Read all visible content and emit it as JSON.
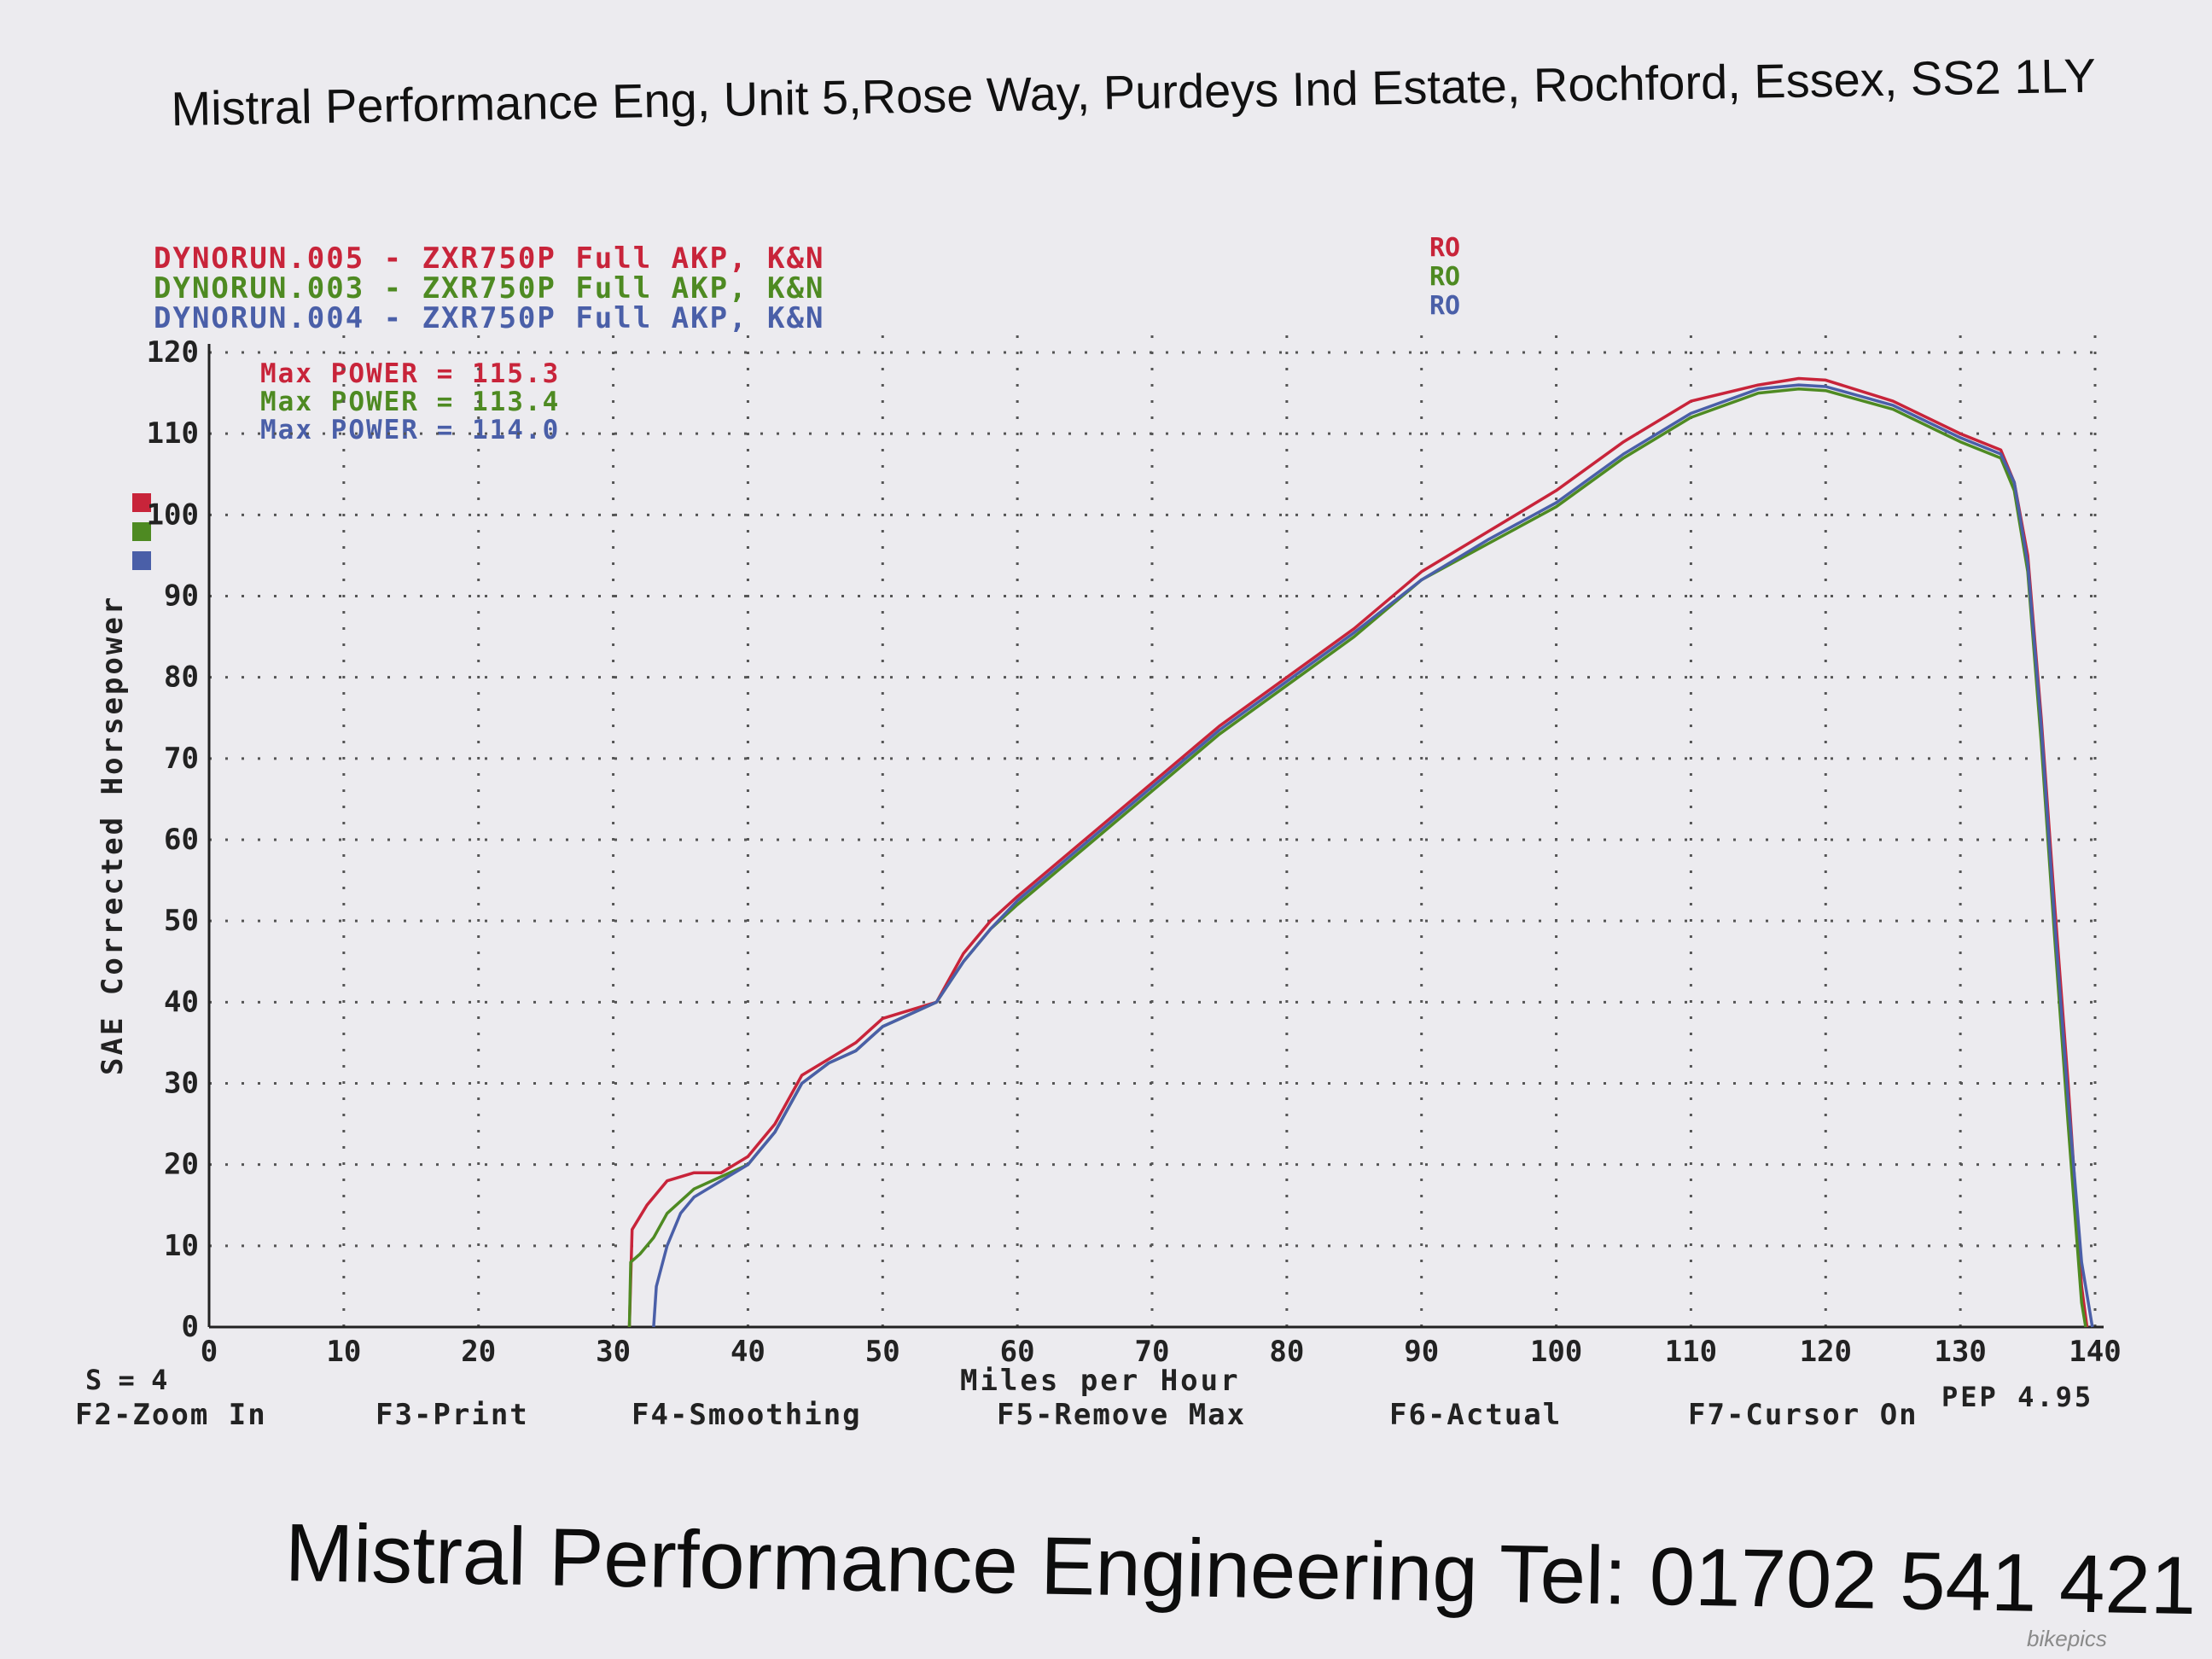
{
  "header": {
    "address": "Mistral Performance Eng, Unit 5,Rose Way, Purdeys Ind Estate, Rochford, Essex, SS2 1LY"
  },
  "footer": {
    "company": "Mistral Performance Engineering Tel: 01702 541 421"
  },
  "legend": [
    {
      "text": "DYNORUN.005 - ZXR750P Full AKP, K&N",
      "ro": "RO",
      "color": "#c8243a"
    },
    {
      "text": "DYNORUN.003 - ZXR750P Full AKP, K&N",
      "ro": "RO",
      "color": "#4e8a22"
    },
    {
      "text": "DYNORUN.004 - ZXR750P Full AKP, K&N",
      "ro": "RO",
      "color": "#4a5fa8"
    }
  ],
  "max_power": [
    {
      "text": "Max POWER = 115.3",
      "color": "#c8243a"
    },
    {
      "text": "Max POWER = 113.4",
      "color": "#4e8a22"
    },
    {
      "text": "Max POWER = 114.0",
      "color": "#4a5fa8"
    }
  ],
  "axis_text": {
    "ylabel": "SAE Corrected Horsepower",
    "xlabel": "Miles per Hour",
    "smoothing": "S = 4",
    "pep": "PEP 4.95"
  },
  "function_keys": [
    "F2-Zoom In",
    "F3-Print",
    "F4-Smoothing",
    "F5-Remove Max",
    "F6-Actual",
    "F7-Cursor On"
  ],
  "watermark": "bikepics",
  "chart_data": {
    "type": "line",
    "xlabel": "Miles per Hour",
    "ylabel": "SAE Corrected Horsepower",
    "xlim": [
      0,
      140
    ],
    "ylim": [
      0,
      120
    ],
    "xticks": [
      0,
      10,
      20,
      30,
      40,
      50,
      60,
      70,
      80,
      90,
      100,
      110,
      120,
      130,
      140
    ],
    "yticks": [
      0,
      10,
      20,
      30,
      40,
      50,
      60,
      70,
      80,
      90,
      100,
      110,
      120
    ],
    "grid": true,
    "series": [
      {
        "name": "DYNORUN.005",
        "color": "#c8243a",
        "points": [
          [
            31.2,
            0
          ],
          [
            31.4,
            12
          ],
          [
            32.5,
            15
          ],
          [
            34,
            18
          ],
          [
            36,
            19
          ],
          [
            38,
            19
          ],
          [
            40,
            21
          ],
          [
            42,
            25
          ],
          [
            44,
            31
          ],
          [
            46,
            33
          ],
          [
            48,
            35
          ],
          [
            50,
            38
          ],
          [
            52,
            39
          ],
          [
            54,
            40
          ],
          [
            56,
            46
          ],
          [
            58,
            50
          ],
          [
            60,
            53
          ],
          [
            65,
            60
          ],
          [
            70,
            67
          ],
          [
            75,
            74
          ],
          [
            80,
            80
          ],
          [
            85,
            86
          ],
          [
            90,
            93
          ],
          [
            95,
            98
          ],
          [
            100,
            103
          ],
          [
            105,
            109
          ],
          [
            110,
            114
          ],
          [
            115,
            116
          ],
          [
            118,
            116.8
          ],
          [
            120,
            116.6
          ],
          [
            125,
            114
          ],
          [
            130,
            110
          ],
          [
            133,
            108
          ],
          [
            134,
            104
          ],
          [
            135,
            95
          ],
          [
            136,
            75
          ],
          [
            137,
            52
          ],
          [
            138,
            30
          ],
          [
            139,
            5
          ],
          [
            139.4,
            0
          ]
        ]
      },
      {
        "name": "DYNORUN.003",
        "color": "#4e8a22",
        "points": [
          [
            31.2,
            0
          ],
          [
            31.3,
            8
          ],
          [
            32,
            9
          ],
          [
            33,
            11
          ],
          [
            34,
            14
          ],
          [
            36,
            17
          ],
          [
            38,
            18.5
          ],
          [
            40,
            20
          ],
          [
            42,
            24
          ],
          [
            44,
            30
          ],
          [
            46,
            32.5
          ],
          [
            48,
            34
          ],
          [
            50,
            37
          ],
          [
            52,
            38.5
          ],
          [
            54,
            40
          ],
          [
            56,
            45
          ],
          [
            58,
            49
          ],
          [
            60,
            52
          ],
          [
            65,
            59
          ],
          [
            70,
            66
          ],
          [
            75,
            73
          ],
          [
            80,
            79
          ],
          [
            85,
            85
          ],
          [
            90,
            92
          ],
          [
            95,
            96.5
          ],
          [
            100,
            101
          ],
          [
            105,
            107
          ],
          [
            110,
            112
          ],
          [
            115,
            115
          ],
          [
            118,
            115.5
          ],
          [
            120,
            115.3
          ],
          [
            125,
            113
          ],
          [
            130,
            109
          ],
          [
            133,
            107
          ],
          [
            134,
            103
          ],
          [
            135,
            93
          ],
          [
            136,
            72
          ],
          [
            137,
            48
          ],
          [
            138,
            25
          ],
          [
            139,
            3
          ],
          [
            139.3,
            0
          ]
        ]
      },
      {
        "name": "DYNORUN.004",
        "color": "#4a5fa8",
        "points": [
          [
            33,
            0
          ],
          [
            33.2,
            5
          ],
          [
            34,
            10
          ],
          [
            35,
            14
          ],
          [
            36,
            16
          ],
          [
            38,
            18
          ],
          [
            40,
            20
          ],
          [
            42,
            24
          ],
          [
            44,
            30
          ],
          [
            46,
            32.5
          ],
          [
            48,
            34
          ],
          [
            50,
            37
          ],
          [
            52,
            38.5
          ],
          [
            54,
            40
          ],
          [
            56,
            45
          ],
          [
            58,
            49
          ],
          [
            60,
            52.5
          ],
          [
            65,
            59.5
          ],
          [
            70,
            66.5
          ],
          [
            75,
            73.5
          ],
          [
            80,
            79.5
          ],
          [
            85,
            85.5
          ],
          [
            90,
            92
          ],
          [
            95,
            97
          ],
          [
            100,
            101.5
          ],
          [
            105,
            107.5
          ],
          [
            110,
            112.5
          ],
          [
            115,
            115.5
          ],
          [
            118,
            116
          ],
          [
            120,
            115.8
          ],
          [
            125,
            113.5
          ],
          [
            130,
            109.5
          ],
          [
            133,
            107.5
          ],
          [
            134,
            104
          ],
          [
            135,
            94
          ],
          [
            136,
            74
          ],
          [
            137,
            50
          ],
          [
            138,
            28
          ],
          [
            139,
            8
          ],
          [
            139.8,
            0
          ]
        ]
      }
    ]
  }
}
